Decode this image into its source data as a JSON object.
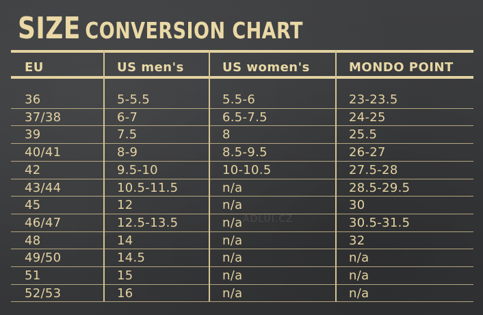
{
  "title": {
    "big": "SIZE",
    "small": "CONVERSION CHART"
  },
  "headers": [
    "EU",
    "US men's",
    "US women's",
    "MONDO POINT"
  ],
  "rows": [
    [
      "36",
      "5-5.5",
      "5.5-6",
      "23-23.5"
    ],
    [
      "37/38",
      "6-7",
      "6.5-7.5",
      "24-25"
    ],
    [
      "39",
      "7.5",
      "8",
      "25.5"
    ],
    [
      "40/41",
      "8-9",
      "8.5-9.5",
      "26-27"
    ],
    [
      "42",
      "9.5-10",
      "10-10.5",
      "27.5-28"
    ],
    [
      "43/44",
      "10.5-11.5",
      "n/a",
      "28.5-29.5"
    ],
    [
      "45",
      "12",
      "n/a",
      "30"
    ],
    [
      "46/47",
      "12.5-13.5",
      "n/a",
      "30.5-31.5"
    ],
    [
      "48",
      "14",
      "n/a",
      "32"
    ],
    [
      "49/50",
      "14.5",
      "n/a",
      "n/a"
    ],
    [
      "51",
      "15",
      "n/a",
      "n/a"
    ],
    [
      "52/53",
      "16",
      "n/a",
      "n/a"
    ]
  ],
  "watermark": "ADLUI.CZ"
}
